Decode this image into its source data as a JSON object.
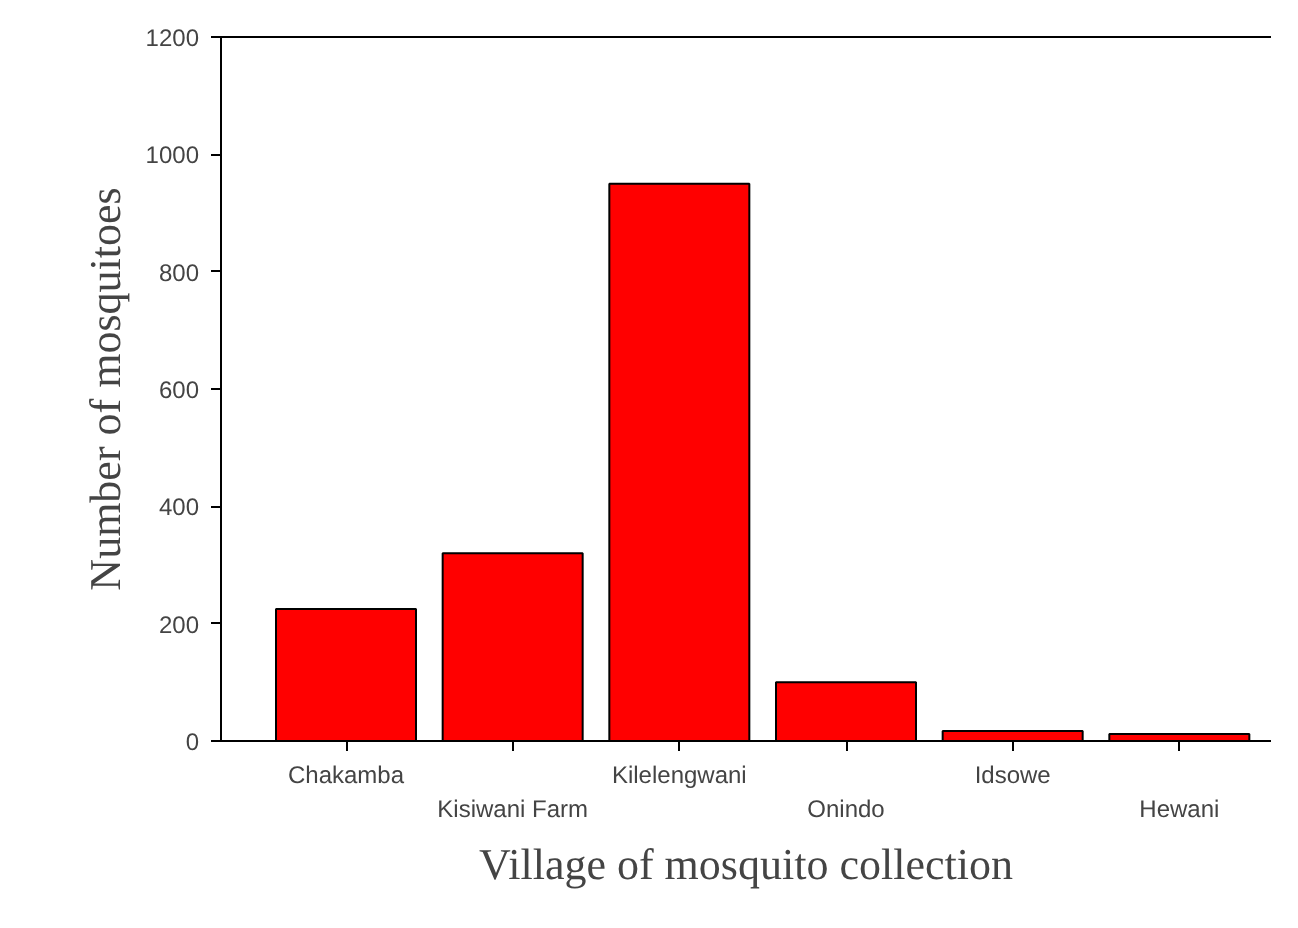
{
  "chart_data": {
    "type": "bar",
    "xlabel": "Village of mosquito collection",
    "ylabel": "Number of mosquitoes",
    "categories": [
      "Chakamba",
      "Kisiwani Farm",
      "Kilelengwani",
      "Onindo",
      "Idsowe",
      "Hewani"
    ],
    "values": [
      225,
      320,
      950,
      100,
      17,
      12
    ],
    "color": "#ff0000",
    "ylim": [
      0,
      1200
    ],
    "yticks": [
      0,
      200,
      400,
      600,
      800,
      1000,
      1200
    ],
    "grid": false
  }
}
